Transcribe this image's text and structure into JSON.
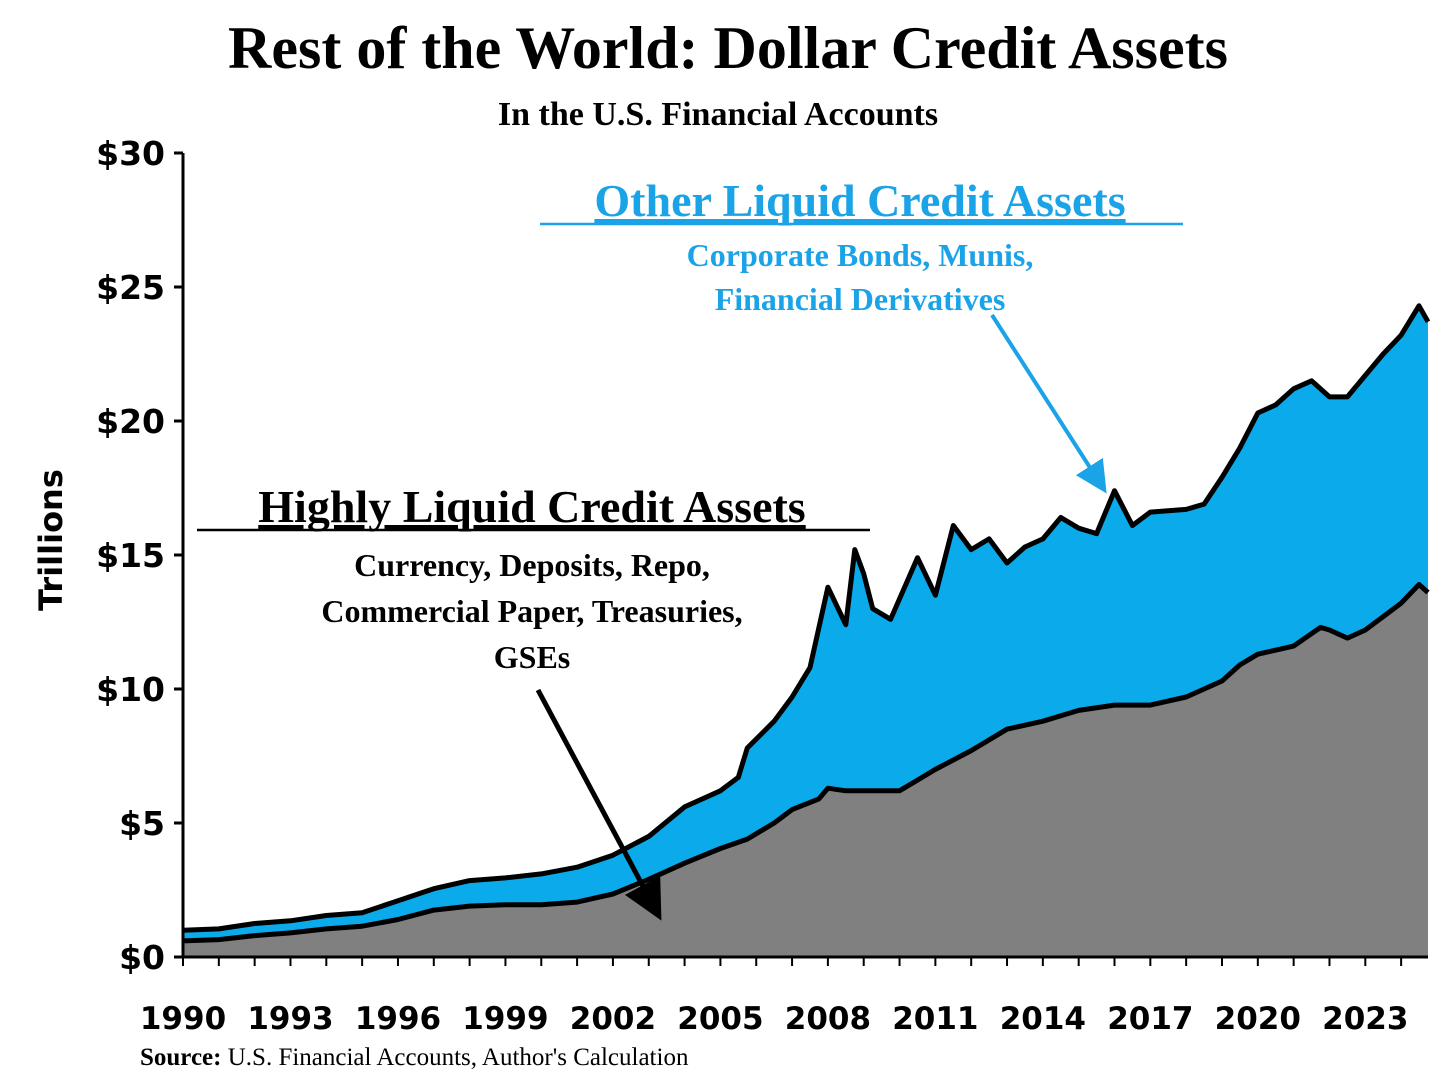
{
  "title": "Rest of the World: Dollar Credit Assets",
  "subtitle": "In the U.S. Financial Accounts",
  "source_label": "Source:",
  "source_text": "U.S. Financial Accounts, Author's Calculation",
  "colors": {
    "highly_liquid": "#808080",
    "other_liquid": "#0BAAEB",
    "outline": "#000000",
    "other_text": "#1AA3E6"
  },
  "chart_data": {
    "type": "area",
    "stacked": true,
    "title": "Rest of the World: Dollar Credit Assets",
    "subtitle": "In the U.S. Financial Accounts",
    "ylabel": "Trillions",
    "xlabel": "",
    "ylim": [
      0,
      30
    ],
    "xlim": [
      1990,
      2024.75
    ],
    "yticks": [
      0,
      5,
      10,
      15,
      20,
      25,
      30
    ],
    "ytick_labels": [
      "$0",
      "$5",
      "$10",
      "$15",
      "$20",
      "$25",
      "$30"
    ],
    "xticks": [
      1990,
      1993,
      1996,
      1999,
      2002,
      2005,
      2008,
      2011,
      2014,
      2017,
      2020,
      2023
    ],
    "xtick_labels": [
      "1990",
      "1993",
      "1996",
      "1999",
      "2002",
      "2005",
      "2008",
      "2011",
      "2014",
      "2017",
      "2020",
      "2023"
    ],
    "series": [
      {
        "name": "Highly Liquid Credit Assets",
        "description_lines": [
          "Currency, Deposits, Repo,",
          "Commercial Paper, Treasuries,",
          "GSEs"
        ],
        "points": [
          [
            1990,
            0.6
          ],
          [
            1991,
            0.65
          ],
          [
            1992,
            0.8
          ],
          [
            1993,
            0.9
          ],
          [
            1994,
            1.05
          ],
          [
            1995,
            1.15
          ],
          [
            1996,
            1.4
          ],
          [
            1997,
            1.75
          ],
          [
            1998,
            1.9
          ],
          [
            1999,
            1.95
          ],
          [
            2000,
            1.95
          ],
          [
            2001,
            2.05
          ],
          [
            2002,
            2.35
          ],
          [
            2003,
            2.9
          ],
          [
            2004,
            3.5
          ],
          [
            2005,
            4.05
          ],
          [
            2005.75,
            4.4
          ],
          [
            2006.5,
            5.0
          ],
          [
            2007,
            5.5
          ],
          [
            2007.75,
            5.9
          ],
          [
            2008,
            6.3
          ],
          [
            2008.5,
            6.2
          ],
          [
            2009,
            6.2
          ],
          [
            2010,
            6.2
          ],
          [
            2010.5,
            6.6
          ],
          [
            2011,
            7.0
          ],
          [
            2012,
            7.7
          ],
          [
            2013,
            8.5
          ],
          [
            2014,
            8.8
          ],
          [
            2015,
            9.2
          ],
          [
            2016,
            9.4
          ],
          [
            2017,
            9.4
          ],
          [
            2018,
            9.7
          ],
          [
            2019,
            10.3
          ],
          [
            2019.5,
            10.9
          ],
          [
            2020,
            11.3
          ],
          [
            2021,
            11.6
          ],
          [
            2021.75,
            12.3
          ],
          [
            2022,
            12.2
          ],
          [
            2022.5,
            11.9
          ],
          [
            2023,
            12.2
          ],
          [
            2023.5,
            12.7
          ],
          [
            2024,
            13.2
          ],
          [
            2024.5,
            13.9
          ],
          [
            2024.75,
            13.6
          ]
        ]
      },
      {
        "name": "Other Liquid Credit Assets",
        "description_lines": [
          "Corporate Bonds, Munis,",
          "Financial Derivatives"
        ],
        "total_points": [
          [
            1990,
            1.0
          ],
          [
            1991,
            1.05
          ],
          [
            1992,
            1.25
          ],
          [
            1993,
            1.35
          ],
          [
            1994,
            1.55
          ],
          [
            1995,
            1.65
          ],
          [
            1996,
            2.1
          ],
          [
            1997,
            2.55
          ],
          [
            1998,
            2.85
          ],
          [
            1999,
            2.95
          ],
          [
            2000,
            3.1
          ],
          [
            2001,
            3.35
          ],
          [
            2002,
            3.8
          ],
          [
            2003,
            4.5
          ],
          [
            2004,
            5.6
          ],
          [
            2005,
            6.2
          ],
          [
            2005.5,
            6.7
          ],
          [
            2005.75,
            7.8
          ],
          [
            2006.5,
            8.8
          ],
          [
            2007,
            9.7
          ],
          [
            2007.5,
            10.8
          ],
          [
            2008,
            13.8
          ],
          [
            2008.5,
            12.4
          ],
          [
            2008.75,
            15.2
          ],
          [
            2009,
            14.3
          ],
          [
            2009.25,
            13.0
          ],
          [
            2009.75,
            12.6
          ],
          [
            2010.5,
            14.9
          ],
          [
            2011,
            13.5
          ],
          [
            2011.5,
            16.1
          ],
          [
            2012,
            15.2
          ],
          [
            2012.5,
            15.6
          ],
          [
            2013,
            14.7
          ],
          [
            2013.5,
            15.3
          ],
          [
            2014,
            15.6
          ],
          [
            2014.5,
            16.4
          ],
          [
            2015,
            16.0
          ],
          [
            2015.5,
            15.8
          ],
          [
            2016,
            17.4
          ],
          [
            2016.5,
            16.1
          ],
          [
            2017,
            16.6
          ],
          [
            2018,
            16.7
          ],
          [
            2018.5,
            16.9
          ],
          [
            2019,
            17.9
          ],
          [
            2019.5,
            19.0
          ],
          [
            2020,
            20.3
          ],
          [
            2020.5,
            20.6
          ],
          [
            2021,
            21.2
          ],
          [
            2021.5,
            21.5
          ],
          [
            2022,
            20.9
          ],
          [
            2022.5,
            20.9
          ],
          [
            2023,
            21.7
          ],
          [
            2023.5,
            22.5
          ],
          [
            2024,
            23.2
          ],
          [
            2024.5,
            24.3
          ],
          [
            2024.75,
            23.7
          ]
        ]
      }
    ]
  },
  "annotations": {
    "other": {
      "heading": "Other Liquid Credit Assets",
      "line1": "Corporate Bonds, Munis,",
      "line2": "Financial Derivatives"
    },
    "highly": {
      "heading": "Highly Liquid Credit Assets",
      "line1": "Currency, Deposits, Repo,",
      "line2": "Commercial Paper, Treasuries,",
      "line3": "GSEs"
    }
  }
}
